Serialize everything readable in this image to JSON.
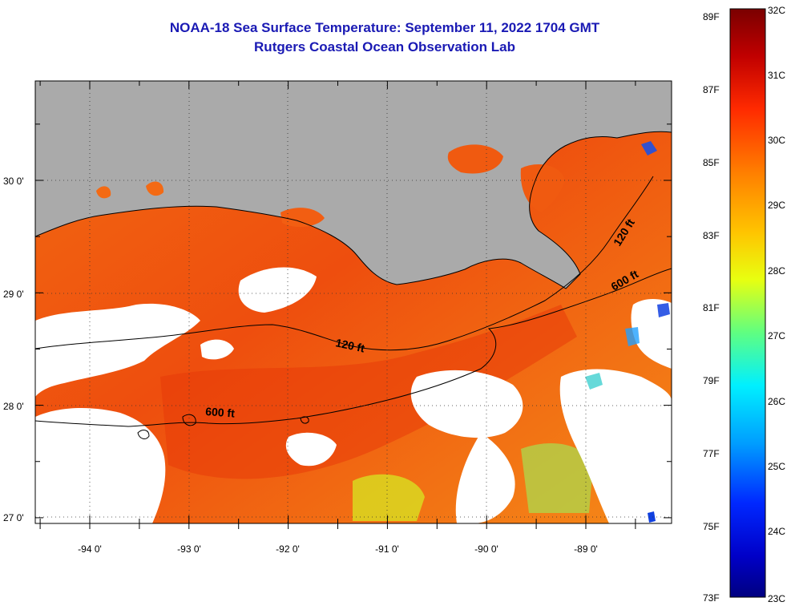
{
  "title": {
    "line1": "NOAA-18 Sea Surface Temperature:  September 11, 2022 1704 GMT",
    "line2": "Rutgers Coastal Ocean Observation Lab"
  },
  "axes": {
    "lat_labels": [
      "30 0'",
      "29 0'",
      "28 0'",
      "27 0'"
    ],
    "lon_labels": [
      "-94 0'",
      "-93 0'",
      "-92 0'",
      "-91 0'",
      "-90 0'",
      "-89 0'"
    ]
  },
  "contours": {
    "label_120_west": "120 ft",
    "label_600_west": "600 ft",
    "label_120_east": "120 ft",
    "label_600_east": "600 ft"
  },
  "colorbar": {
    "fahrenheit": [
      "89F",
      "87F",
      "85F",
      "83F",
      "81F",
      "79F",
      "77F",
      "75F",
      "73F"
    ],
    "celsius": [
      "32C",
      "31C",
      "30C",
      "29C",
      "28C",
      "27C",
      "26C",
      "25C",
      "24C",
      "23C"
    ]
  },
  "colors": {
    "land": "#aaaaaa",
    "cloud": "#ffffff",
    "warm": "#f45a10",
    "title": "#1a1ab4"
  }
}
